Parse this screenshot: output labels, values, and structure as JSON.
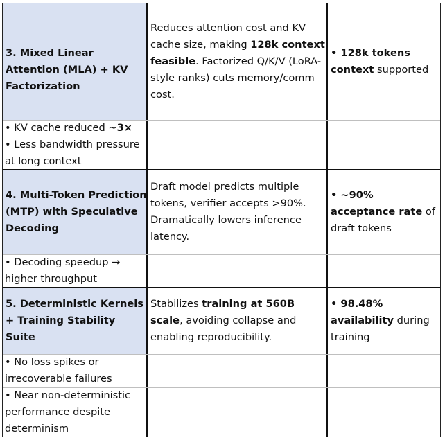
{
  "rows": [
    {
      "title": "3. Mixed Linear Attention (MLA) + KV Factorization",
      "desc_parts": [
        "Reduces attention cost and KV cache size, making ",
        "128k context feasible",
        ". Factorized Q/K/V (LoRA-style ranks) cuts memory/comm cost."
      ],
      "metric_parts": [
        "• 128k tokens context",
        " supported"
      ],
      "bullets": [
        {
          "parts": [
            "• KV cache reduced ~",
            "3×"
          ]
        },
        {
          "parts": [
            "• Less bandwidth pressure at long context",
            ""
          ]
        }
      ]
    },
    {
      "title": "4. Multi-Token Prediction (MTP) with Speculative Decoding",
      "desc_parts": [
        "Draft model predicts multiple tokens, verifier accepts >90%. Dramatically lowers inference latency.",
        "",
        ""
      ],
      "metric_parts": [
        "• ~90% acceptance rate",
        " of draft tokens"
      ],
      "bullets": [
        {
          "parts": [
            "• Decoding speedup → higher throughput",
            ""
          ]
        }
      ]
    },
    {
      "title": "5. Deterministic Kernels + Training Stability Suite",
      "desc_parts": [
        "Stabilizes ",
        "training at 560B scale",
        ", avoiding collapse and enabling reproducibility."
      ],
      "metric_parts": [
        "• 98.48% availability",
        " during training"
      ],
      "bullets": [
        {
          "parts": [
            "• No loss spikes or irrecoverable failures",
            ""
          ]
        },
        {
          "parts": [
            "• Near non-deterministic performance despite determinism",
            ""
          ]
        }
      ]
    }
  ]
}
